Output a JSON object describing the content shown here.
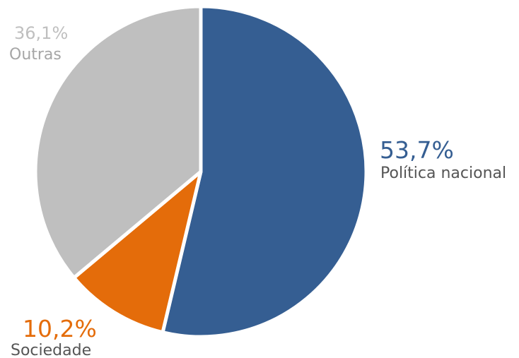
{
  "chart_data": {
    "type": "pie",
    "title": "",
    "slices": [
      {
        "label": "Política nacional",
        "value": 53.7,
        "value_label": "53,7%",
        "color": "#355e92",
        "label_color": "#555555"
      },
      {
        "label": "Sociedade",
        "value": 10.2,
        "value_label": "10,2%",
        "color": "#e46c0a",
        "label_color": "#555555"
      },
      {
        "label": "Outras",
        "value": 36.1,
        "value_label": "36,1%",
        "color": "#bfbfbf",
        "label_color": "#a6a6a6"
      }
    ],
    "start": "12 o'clock",
    "direction": "clockwise",
    "legend": "none"
  }
}
